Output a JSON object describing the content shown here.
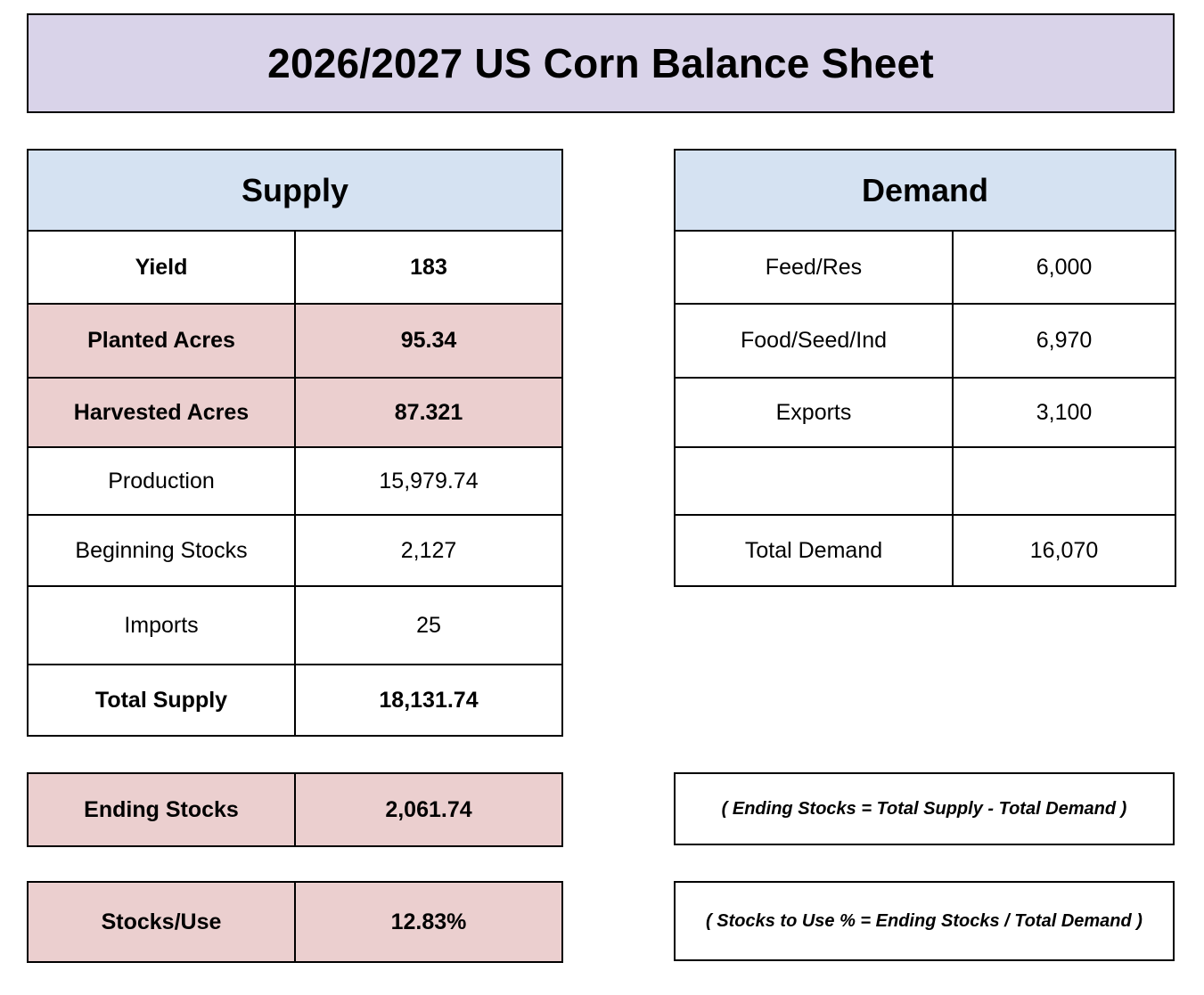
{
  "title": "2026/2027 US Corn Balance Sheet",
  "supply": {
    "header": "Supply",
    "rows": [
      {
        "label": "Yield",
        "value": "183"
      },
      {
        "label": "Planted Acres",
        "value": "95.34"
      },
      {
        "label": "Harvested Acres",
        "value": "87.321"
      },
      {
        "label": "Production",
        "value": "15,979.74"
      },
      {
        "label": "Beginning Stocks",
        "value": "2,127"
      },
      {
        "label": "Imports",
        "value": "25"
      },
      {
        "label": "Total Supply",
        "value": "18,131.74"
      }
    ]
  },
  "demand": {
    "header": "Demand",
    "rows": [
      {
        "label": "Feed/Res",
        "value": "6,000"
      },
      {
        "label": "Food/Seed/Ind",
        "value": "6,970"
      },
      {
        "label": "Exports",
        "value": "3,100"
      },
      {
        "label": "",
        "value": ""
      },
      {
        "label": "Total Demand",
        "value": "16,070"
      }
    ]
  },
  "ending_stocks": {
    "label": "Ending Stocks",
    "value": "2,061.74"
  },
  "stocks_use": {
    "label": "Stocks/Use",
    "value": "12.83%"
  },
  "formulas": {
    "ending_stocks": "( Ending Stocks = Total Supply - Total Demand )",
    "stocks_use": "( Stocks to Use % = Ending Stocks / Total Demand )"
  },
  "colors": {
    "title_bg": "#d9d3e9",
    "header_bg": "#d5e2f2",
    "highlight_bg": "#ebcfcf",
    "border": "#000000"
  }
}
